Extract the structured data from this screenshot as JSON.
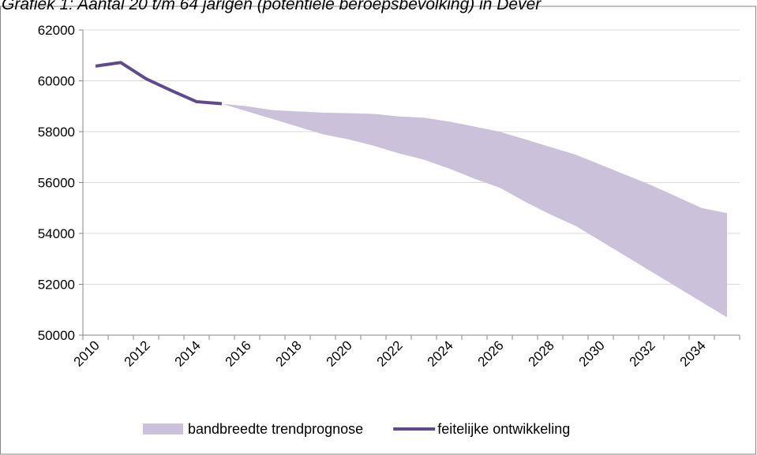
{
  "chart_data": {
    "type": "band-line",
    "title": "Grafiek 1: Aantal 20 t/m 64 jarigen (potentiële beroepsbevolking) in Dever",
    "categories": [
      "2010",
      null,
      "2012",
      null,
      "2014",
      null,
      "2016",
      null,
      "2018",
      null,
      "2020",
      null,
      "2022",
      null,
      "2024",
      null,
      "2026",
      null,
      "2028",
      null,
      "2030",
      null,
      "2032",
      null,
      "2034",
      null
    ],
    "ylim": [
      50000,
      62000
    ],
    "yticks": [
      50000,
      52000,
      54000,
      56000,
      58000,
      60000,
      62000
    ],
    "grid": true,
    "series": [
      {
        "name": "bandbreedte trendprognose",
        "color": "#ccc1da",
        "upper": [
          null,
          null,
          null,
          null,
          null,
          59100,
          59000,
          58850,
          58800,
          58750,
          58730,
          58700,
          58600,
          58550,
          58400,
          58200,
          58000,
          57700,
          57400,
          57100,
          56700,
          56300,
          55900,
          55450,
          55000,
          54800
        ],
        "lower": [
          null,
          null,
          null,
          null,
          null,
          59100,
          58800,
          58500,
          58200,
          57900,
          57700,
          57450,
          57150,
          56900,
          56550,
          56150,
          55800,
          55250,
          54750,
          54300,
          53700,
          53100,
          52500,
          51900,
          51300,
          50700
        ]
      },
      {
        "name": "feitelijke ontwikkeling",
        "color": "#5f4b8b",
        "values": [
          60580,
          60720,
          60080,
          59620,
          59180,
          59100,
          null,
          null,
          null,
          null,
          null,
          null,
          null,
          null,
          null,
          null,
          null,
          null,
          null,
          null,
          null,
          null,
          null,
          null,
          null,
          null
        ]
      }
    ]
  }
}
